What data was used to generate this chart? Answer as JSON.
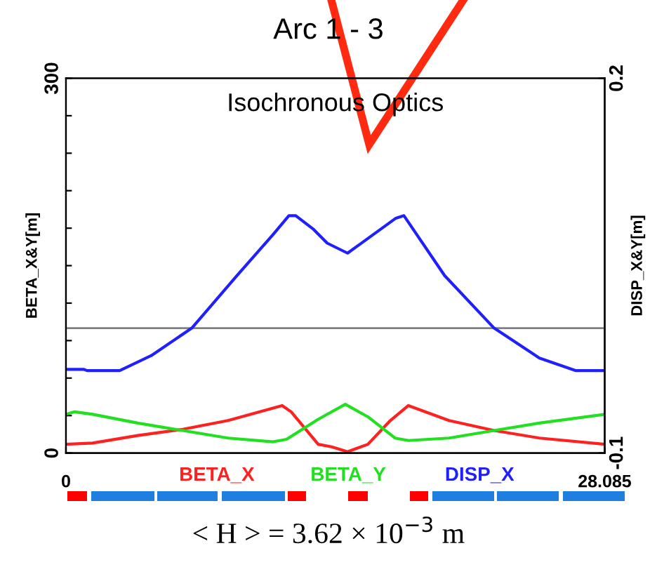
{
  "chart_data": {
    "type": "line",
    "title": "Arc 1 - 3",
    "subtitle": "Isochronous Optics",
    "ylabel": "BETA_X&Y[m]",
    "y2label": "DISP_X&Y[m]",
    "annotations": [
      "< H > = 3.62 × 10$^{−3}$ m"
    ],
    "xlim": [
      0,
      28.085
    ],
    "xticks": [
      0,
      28.085
    ],
    "ylim": [
      0,
      300
    ],
    "yticks": [
      0,
      {
        "value": 30,
        "label": null
      },
      {
        "value": 60,
        "label": null
      },
      {
        "value": 90,
        "label": null
      },
      {
        "value": 120,
        "label": null
      },
      {
        "value": 150,
        "label": null
      },
      {
        "value": 180,
        "label": null
      },
      {
        "value": 210,
        "label": null
      },
      {
        "value": 240,
        "label": null
      },
      {
        "value": 270,
        "label": null
      },
      300
    ],
    "y2lim": [
      -0.1,
      0.2
    ],
    "y2ticks": [
      -0.1,
      0.2
    ],
    "grid": false,
    "legend": "bottom",
    "marker": "none",
    "line_style": "solid",
    "ref_lines": [
      {
        "axis": "y2",
        "value": 0,
        "color": "#808080"
      }
    ],
    "series": [
      {
        "name": "BETA_X",
        "color": "#ff2020",
        "x": [
          0,
          1.39,
          3.74,
          6.09,
          8.45,
          11.27,
          11.74,
          13.15,
          13.85,
          14.68,
          15.74,
          16.91,
          17.85,
          19.97,
          22.32,
          24.68,
          28.085
        ],
        "values": [
          7,
          8,
          14,
          19,
          26,
          38,
          33,
          7,
          5,
          1,
          7,
          26,
          38,
          26,
          18,
          12,
          7
        ]
      },
      {
        "name": "BETA_Y",
        "color": "#20e020",
        "x": [
          0,
          0.45,
          1.39,
          3.74,
          6.09,
          8.45,
          10.8,
          11.5,
          13.15,
          14.56,
          15.74,
          17.15,
          17.85,
          19.97,
          22.32,
          24.68,
          28.085
        ],
        "values": [
          31,
          33,
          31,
          24,
          18,
          12,
          9,
          11,
          27,
          39,
          29,
          12,
          10,
          12,
          18,
          24,
          31
        ]
      },
      {
        "name": "DISP_X",
        "color": "#2020ff",
        "axis": "y2",
        "x": [
          0,
          0.92,
          1.1,
          2.8,
          4.45,
          6.56,
          8.91,
          10.8,
          11.62,
          11.98,
          12.91,
          13.62,
          14.68,
          17.2,
          17.62,
          19.74,
          22.32,
          24.68,
          26.56,
          28.085
        ],
        "values": [
          -0.033,
          -0.033,
          -0.034,
          -0.034,
          -0.022,
          0.0,
          0.042,
          0.075,
          0.09,
          0.09,
          0.079,
          0.068,
          0.06,
          0.088,
          0.09,
          0.042,
          0.0,
          -0.024,
          -0.034,
          -0.034
        ]
      }
    ]
  }
}
